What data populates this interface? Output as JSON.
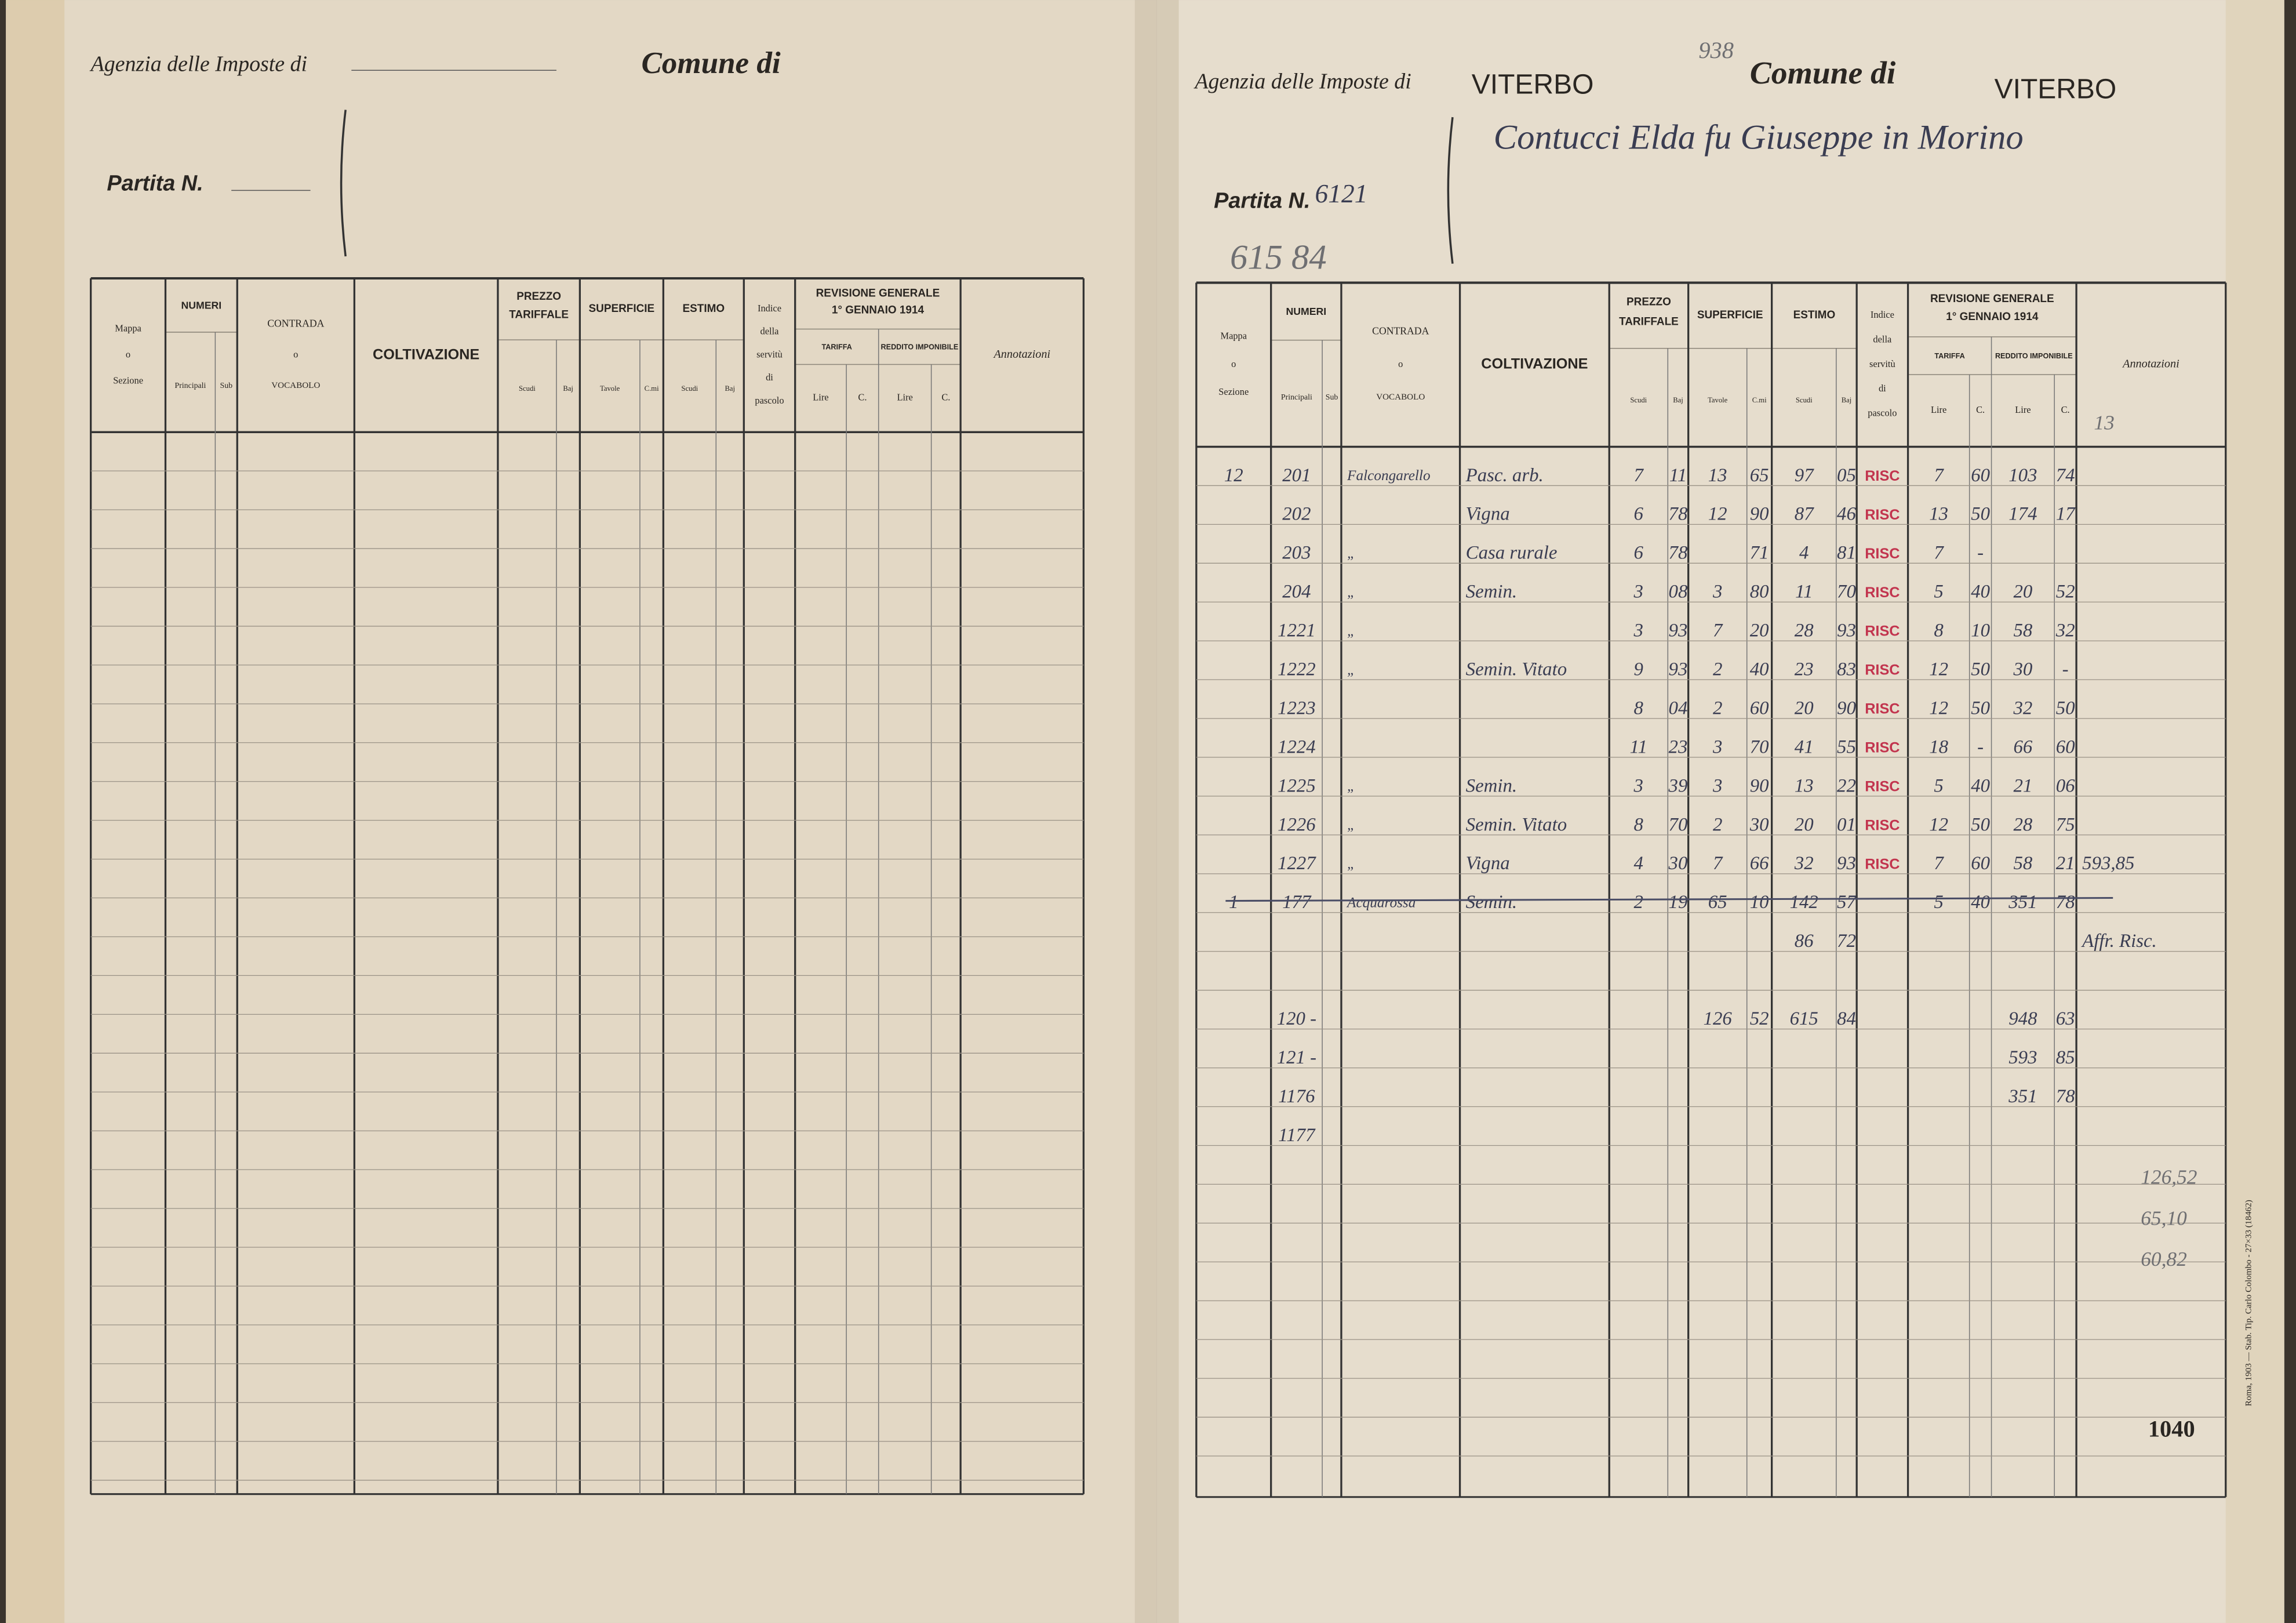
{
  "left_page": {
    "agency_label": "Agenzia delle Imposte di",
    "comune_label": "Comune di",
    "partita_label": "Partita N."
  },
  "right_page": {
    "agency_label": "Agenzia delle Imposte di",
    "agency": "VITERBO",
    "reference": "938",
    "comune_label": "Comune di",
    "comune": "VITERBO",
    "owner": "Contucci Elda fu Giuseppe in Morino",
    "partita_label": "Partita N.",
    "partita": "6121",
    "total_estimo": "615 84",
    "corner_note": "13",
    "page_number": "1040",
    "printer": "Roma, 1903 — Stab. Tip. Carlo Colombo - 27×33 (18462)",
    "rows": [
      {
        "sezione": "12",
        "principali": "201",
        "contrada": "Falcongarello",
        "coltivazione": "Pasc. arb.",
        "prezzo_scudi": "7",
        "prezzo_baj": "11",
        "sup_tavole": "13",
        "sup_cmi": "65",
        "estimo_scudi": "97",
        "estimo_baj": "05",
        "stamp": "RISC",
        "tariffa_lire": "7",
        "tariffa_c": "60",
        "reddito_lire": "103",
        "reddito_c": "74"
      },
      {
        "principali": "202",
        "coltivazione": "Vigna",
        "prezzo_scudi": "6",
        "prezzo_baj": "78",
        "sup_tavole": "12",
        "sup_cmi": "90",
        "estimo_scudi": "87",
        "estimo_baj": "46",
        "stamp": "RISC",
        "tariffa_lire": "13",
        "tariffa_c": "50",
        "reddito_lire": "174",
        "reddito_c": "17"
      },
      {
        "principali": "203",
        "contrada": "„",
        "coltivazione": "Casa rurale",
        "prezzo_scudi": "6",
        "prezzo_baj": "78",
        "sup_cmi": "71",
        "estimo_scudi": "4",
        "estimo_baj": "81",
        "stamp": "RISC",
        "tariffa_lire": "7",
        "tariffa_c": "-"
      },
      {
        "principali": "204",
        "contrada": "„",
        "coltivazione": "Semin.",
        "prezzo_scudi": "3",
        "prezzo_baj": "08",
        "sup_tavole": "3",
        "sup_cmi": "80",
        "estimo_scudi": "11",
        "estimo_baj": "70",
        "stamp": "RISC",
        "tariffa_lire": "5",
        "tariffa_c": "40",
        "reddito_lire": "20",
        "reddito_c": "52"
      },
      {
        "principali": "1221",
        "contrada": "„",
        "prezzo_scudi": "3",
        "prezzo_baj": "93",
        "sup_tavole": "7",
        "sup_cmi": "20",
        "estimo_scudi": "28",
        "estimo_baj": "93",
        "stamp": "RISC",
        "tariffa_lire": "8",
        "tariffa_c": "10",
        "reddito_lire": "58",
        "reddito_c": "32"
      },
      {
        "principali": "1222",
        "contrada": "„",
        "coltivazione": "Semin. Vitato",
        "prezzo_scudi": "9",
        "prezzo_baj": "93",
        "sup_tavole": "2",
        "sup_cmi": "40",
        "estimo_scudi": "23",
        "estimo_baj": "83",
        "stamp": "RISC",
        "tariffa_lire": "12",
        "tariffa_c": "50",
        "reddito_lire": "30",
        "reddito_c": "-"
      },
      {
        "principali": "1223",
        "prezzo_scudi": "8",
        "prezzo_baj": "04",
        "sup_tavole": "2",
        "sup_cmi": "60",
        "estimo_scudi": "20",
        "estimo_baj": "90",
        "stamp": "RISC",
        "tariffa_lire": "12",
        "tariffa_c": "50",
        "reddito_lire": "32",
        "reddito_c": "50"
      },
      {
        "principali": "1224",
        "prezzo_scudi": "11",
        "prezzo_baj": "23",
        "sup_tavole": "3",
        "sup_cmi": "70",
        "estimo_scudi": "41",
        "estimo_baj": "55",
        "stamp": "RISC",
        "tariffa_lire": "18",
        "tariffa_c": "-",
        "reddito_lire": "66",
        "reddito_c": "60"
      },
      {
        "principali": "1225",
        "contrada": "„",
        "coltivazione": "Semin.",
        "prezzo_scudi": "3",
        "prezzo_baj": "39",
        "sup_tavole": "3",
        "sup_cmi": "90",
        "estimo_scudi": "13",
        "estimo_baj": "22",
        "stamp": "RISC",
        "tariffa_lire": "5",
        "tariffa_c": "40",
        "reddito_lire": "21",
        "reddito_c": "06"
      },
      {
        "principali": "1226",
        "contrada": "„",
        "coltivazione": "Semin. Vitato",
        "prezzo_scudi": "8",
        "prezzo_baj": "70",
        "sup_tavole": "2",
        "sup_cmi": "30",
        "estimo_scudi": "20",
        "estimo_baj": "01",
        "stamp": "RISC",
        "tariffa_lire": "12",
        "tariffa_c": "50",
        "reddito_lire": "28",
        "reddito_c": "75"
      },
      {
        "principali": "1227",
        "contrada": "„",
        "coltivazione": "Vigna",
        "prezzo_scudi": "4",
        "prezzo_baj": "30",
        "sup_tavole": "7",
        "sup_cmi": "66",
        "estimo_scudi": "32",
        "estimo_baj": "93",
        "stamp": "RISC",
        "tariffa_lire": "7",
        "tariffa_c": "60",
        "reddito_lire": "58",
        "reddito_c": "21",
        "annotazioni": "593,85"
      },
      {
        "sezione": "1",
        "principali": "177",
        "contrada": "Acquarossa",
        "coltivazione": "Semin.",
        "prezzo_scudi": "2",
        "prezzo_baj": "19",
        "sup_tavole": "65",
        "sup_cmi": "10",
        "estimo_scudi": "142",
        "estimo_baj": "57",
        "tariffa_lire": "5",
        "tariffa_c": "40",
        "reddito_lire": "351",
        "reddito_c": "78",
        "struck": true
      },
      {
        "estimo_scudi": "86",
        "estimo_baj": "72",
        "annotazioni": "Affr. Risc."
      }
    ],
    "totals": [
      {
        "principali": "120 -",
        "sup_tavole": "126",
        "sup_cmi": "52",
        "estimo_scudi": "615",
        "estimo_baj": "84",
        "reddito_lire": "948",
        "reddito_c": "63"
      },
      {
        "principali": "121 -",
        "reddito_lire": "593",
        "reddito_c": "85"
      },
      {
        "principali": "1176",
        "reddito_lire": "351",
        "reddito_c": "78"
      },
      {
        "principali": "1177"
      }
    ],
    "margin_notes": [
      "126,52",
      "65,10",
      "60,82"
    ]
  },
  "table_header": {
    "mappa": [
      "Mappa",
      "o",
      "Sezione"
    ],
    "numeri": "NUMERI",
    "principali": "Principali",
    "sub": "Sub",
    "contrada": [
      "CONTRADA",
      "o",
      "VOCABOLO"
    ],
    "coltivazione": "COLTIVAZIONE",
    "prezzo": [
      "PREZZO",
      "TARIFFALE"
    ],
    "superficie": "SUPERFICIE",
    "estimo": "ESTIMO",
    "scudi": "Scudi",
    "baj": "Baj",
    "tavole": "Tavole",
    "cmi": "C.mi",
    "indice": [
      "Indice",
      "della",
      "servitù",
      "di",
      "pascolo"
    ],
    "revisione": [
      "REVISIONE GENERALE",
      "1° GENNAIO 1914"
    ],
    "tariffa": "TARIFFA",
    "reddito": "REDDITO IMPONIBILE",
    "lire": "Lire",
    "c": "C.",
    "annotazioni": "Annotazioni"
  }
}
